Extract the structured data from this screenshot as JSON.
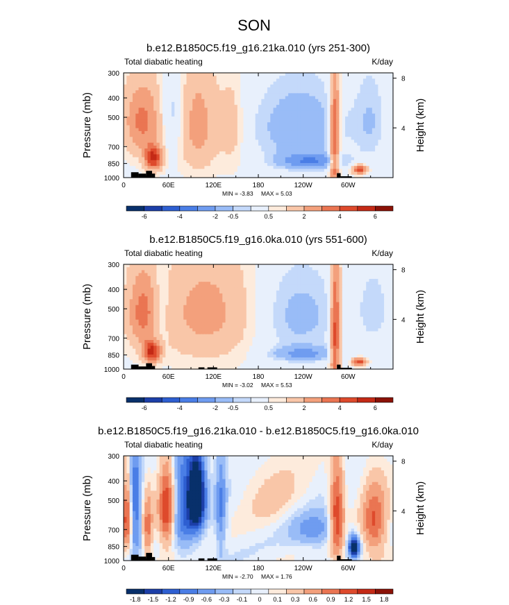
{
  "figure_title": "SON",
  "colors": {
    "scale": [
      "#08306b",
      "#1c3fa8",
      "#2e5fd1",
      "#4a7ee6",
      "#6f9cf0",
      "#99bcf7",
      "#c4d9fa",
      "#e8f0fc",
      "#fdebdc",
      "#f9c6a8",
      "#f3a07c",
      "#ea7552",
      "#de4a2c",
      "#c42a16",
      "#8b1207"
    ],
    "land": "#000000"
  },
  "chart_data": [
    {
      "type": "heatmap",
      "panel": "top",
      "title": "b.e12.B1850C5.f19_g16.21ka.010 (yrs 251-300)",
      "left_label": "Total diabatic heating",
      "right_label": "K/day",
      "ylabel": "Pressure (mb)",
      "ylabel_right": "Height (km)",
      "x_ticks": [
        "0",
        "60E",
        "120E",
        "180",
        "120W",
        "60W"
      ],
      "x_tick_values": [
        0,
        60,
        120,
        180,
        240,
        300
      ],
      "xlim": [
        0,
        360
      ],
      "y_ticks": [
        "300",
        "400",
        "500",
        "700",
        "850",
        "1000"
      ],
      "y_tick_values": [
        300,
        400,
        500,
        700,
        850,
        1000
      ],
      "ylim": [
        1000,
        300
      ],
      "height_ticks": [
        "8",
        "4"
      ],
      "height_tick_values": [
        8,
        4
      ],
      "min_label": "MIN =  -3.83",
      "max_label": "MAX =   5.03",
      "colorbar_labels": [
        "-6",
        "-4",
        "-2",
        "-0.5",
        "0.5",
        "2",
        "4",
        "6"
      ],
      "features": [
        {
          "lon": 25,
          "p": 520,
          "sx": 18,
          "sy": 160,
          "v": 3.0
        },
        {
          "lon": 40,
          "p": 800,
          "sx": 8,
          "sy": 80,
          "v": 4.8
        },
        {
          "lon": 65,
          "p": 480,
          "sx": 10,
          "sy": 160,
          "v": -1.4
        },
        {
          "lon": 100,
          "p": 550,
          "sx": 18,
          "sy": 240,
          "v": 2.2
        },
        {
          "lon": 145,
          "p": 560,
          "sx": 12,
          "sy": 220,
          "v": 1.2
        },
        {
          "lon": 235,
          "p": 560,
          "sx": 45,
          "sy": 200,
          "v": -2.0
        },
        {
          "lon": 250,
          "p": 830,
          "sx": 30,
          "sy": 55,
          "v": -2.8
        },
        {
          "lon": 282,
          "p": 650,
          "sx": 5,
          "sy": 340,
          "v": 4.6
        },
        {
          "lon": 315,
          "p": 910,
          "sx": 7,
          "sy": 35,
          "v": 4.5
        },
        {
          "lon": 330,
          "p": 520,
          "sx": 15,
          "sy": 200,
          "v": -1.2
        }
      ],
      "land": [
        {
          "lon": [
            10,
            20
          ],
          "p_top": 940
        },
        {
          "lon": [
            20,
            30
          ],
          "p_top": 955
        },
        {
          "lon": [
            30,
            38
          ],
          "p_top": 925
        },
        {
          "lon": [
            38,
            42
          ],
          "p_top": 955
        },
        {
          "lon": [
            285,
            290
          ],
          "p_top": 950
        },
        {
          "lon": [
            290,
            305
          ],
          "p_top": 985
        }
      ]
    },
    {
      "type": "heatmap",
      "panel": "middle",
      "title": "b.e12.B1850C5.f19_g16.0ka.010 (yrs 551-600)",
      "left_label": "Total diabatic heating",
      "right_label": "K/day",
      "ylabel": "Pressure (mb)",
      "ylabel_right": "Height (km)",
      "x_ticks": [
        "0",
        "60E",
        "120E",
        "180",
        "120W",
        "60W"
      ],
      "x_tick_values": [
        0,
        60,
        120,
        180,
        240,
        300
      ],
      "xlim": [
        0,
        360
      ],
      "y_ticks": [
        "300",
        "400",
        "500",
        "700",
        "850",
        "1000"
      ],
      "y_tick_values": [
        300,
        400,
        500,
        700,
        850,
        1000
      ],
      "ylim": [
        1000,
        300
      ],
      "height_ticks": [
        "8",
        "4"
      ],
      "height_tick_values": [
        8,
        4
      ],
      "min_label": "MIN =  -3.02",
      "max_label": "MAX =   5.53",
      "colorbar_labels": [
        "-6",
        "-4",
        "-2",
        "-0.5",
        "0.5",
        "2",
        "4",
        "6"
      ],
      "features": [
        {
          "lon": 25,
          "p": 520,
          "sx": 15,
          "sy": 170,
          "v": 2.8
        },
        {
          "lon": 38,
          "p": 820,
          "sx": 8,
          "sy": 70,
          "v": 4.8
        },
        {
          "lon": 50,
          "p": 500,
          "sx": 8,
          "sy": 180,
          "v": -1.0
        },
        {
          "lon": 110,
          "p": 520,
          "sx": 45,
          "sy": 240,
          "v": 2.1
        },
        {
          "lon": 235,
          "p": 540,
          "sx": 40,
          "sy": 210,
          "v": -1.6
        },
        {
          "lon": 240,
          "p": 840,
          "sx": 30,
          "sy": 50,
          "v": -2.3
        },
        {
          "lon": 283,
          "p": 650,
          "sx": 5,
          "sy": 340,
          "v": 4.7
        },
        {
          "lon": 315,
          "p": 920,
          "sx": 7,
          "sy": 30,
          "v": 4.6
        },
        {
          "lon": 335,
          "p": 500,
          "sx": 18,
          "sy": 200,
          "v": -1.0
        }
      ],
      "land": [
        {
          "lon": [
            10,
            20
          ],
          "p_top": 950
        },
        {
          "lon": [
            20,
            30
          ],
          "p_top": 970
        },
        {
          "lon": [
            30,
            38
          ],
          "p_top": 935
        },
        {
          "lon": [
            38,
            42
          ],
          "p_top": 965
        },
        {
          "lon": [
            100,
            108
          ],
          "p_top": 980
        },
        {
          "lon": [
            112,
            125
          ],
          "p_top": 980
        },
        {
          "lon": [
            285,
            290
          ],
          "p_top": 950
        },
        {
          "lon": [
            290,
            305
          ],
          "p_top": 985
        }
      ]
    },
    {
      "type": "heatmap",
      "panel": "bottom",
      "title": "b.e12.B1850C5.f19_g16.21ka.010 - b.e12.B1850C5.f19_g16.0ka.010",
      "left_label": "Total diabatic heating",
      "right_label": "K/day",
      "ylabel": "Pressure (mb)",
      "ylabel_right": "Height (km)",
      "x_ticks": [
        "0",
        "60E",
        "120E",
        "180",
        "120W",
        "60W"
      ],
      "x_tick_values": [
        0,
        60,
        120,
        180,
        240,
        300
      ],
      "xlim": [
        0,
        360
      ],
      "y_ticks": [
        "300",
        "400",
        "500",
        "700",
        "850",
        "1000"
      ],
      "y_tick_values": [
        300,
        400,
        500,
        700,
        850,
        1000
      ],
      "ylim": [
        1000,
        300
      ],
      "height_ticks": [
        "8",
        "4"
      ],
      "height_tick_values": [
        8,
        4
      ],
      "min_label": "MIN =  -2.70",
      "max_label": "MAX =   1.76",
      "colorbar_labels": [
        "-1.8",
        "-1.5",
        "-1.2",
        "-0.9",
        "-0.6",
        "-0.3",
        "-0.1",
        "0",
        "0.1",
        "0.3",
        "0.6",
        "0.9",
        "1.2",
        "1.5",
        "1.8"
      ],
      "features": [
        {
          "lon": 5,
          "p": 600,
          "sx": 5,
          "sy": 200,
          "v": 1.5
        },
        {
          "lon": 15,
          "p": 550,
          "sx": 6,
          "sy": 250,
          "v": -1.3
        },
        {
          "lon": 32,
          "p": 700,
          "sx": 5,
          "sy": 200,
          "v": 1.0
        },
        {
          "lon": 58,
          "p": 560,
          "sx": 8,
          "sy": 200,
          "v": 1.6
        },
        {
          "lon": 80,
          "p": 500,
          "sx": 12,
          "sy": 250,
          "v": -1.2
        },
        {
          "lon": 98,
          "p": 470,
          "sx": 8,
          "sy": 150,
          "v": -2.6
        },
        {
          "lon": 130,
          "p": 550,
          "sx": 5,
          "sy": 250,
          "v": -0.9
        },
        {
          "lon": 200,
          "p": 480,
          "sx": 30,
          "sy": 150,
          "v": 0.35
        },
        {
          "lon": 255,
          "p": 700,
          "sx": 25,
          "sy": 100,
          "v": -0.8
        },
        {
          "lon": 285,
          "p": 620,
          "sx": 7,
          "sy": 250,
          "v": 1.6
        },
        {
          "lon": 308,
          "p": 860,
          "sx": 5,
          "sy": 70,
          "v": -2.4
        },
        {
          "lon": 335,
          "p": 650,
          "sx": 12,
          "sy": 200,
          "v": 1.2
        }
      ],
      "land": [
        {
          "lon": [
            10,
            20
          ],
          "p_top": 935
        },
        {
          "lon": [
            20,
            30
          ],
          "p_top": 955
        },
        {
          "lon": [
            30,
            38
          ],
          "p_top": 915
        },
        {
          "lon": [
            38,
            42
          ],
          "p_top": 960
        },
        {
          "lon": [
            100,
            108
          ],
          "p_top": 975
        },
        {
          "lon": [
            112,
            125
          ],
          "p_top": 975
        },
        {
          "lon": [
            285,
            290
          ],
          "p_top": 945
        },
        {
          "lon": [
            290,
            305
          ],
          "p_top": 985
        }
      ]
    }
  ]
}
